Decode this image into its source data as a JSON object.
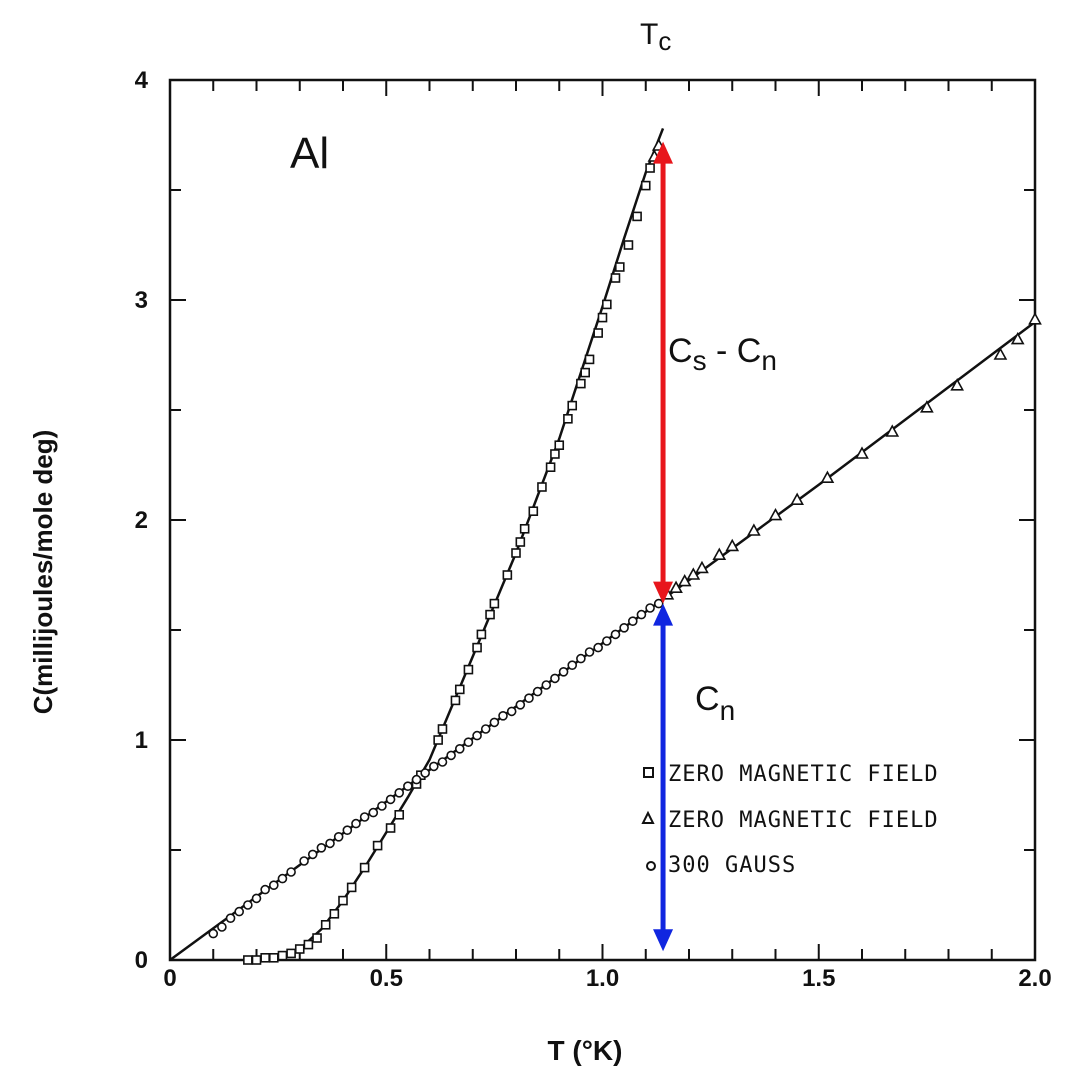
{
  "chart_data": {
    "type": "scatter",
    "xlabel": "T (°K)",
    "ylabel": "C(millijoules/mole deg)",
    "xlim": [
      0,
      2.0
    ],
    "ylim": [
      0,
      4
    ],
    "x_ticks": [
      {
        "value": 0,
        "label": "0"
      },
      {
        "value": 0.5,
        "label": "0.5"
      },
      {
        "value": 1.0,
        "label": "1.0"
      },
      {
        "value": 1.5,
        "label": "1.5"
      },
      {
        "value": 2.0,
        "label": "2.0"
      }
    ],
    "y_ticks": [
      {
        "value": 0,
        "label": "0"
      },
      {
        "value": 1,
        "label": "1"
      },
      {
        "value": 2,
        "label": "2"
      },
      {
        "value": 3,
        "label": "3"
      },
      {
        "value": 4,
        "label": "4"
      }
    ],
    "x_minor_step": 0.1,
    "y_minor_step": 0.5,
    "grid": false,
    "annotations": {
      "element": "Al",
      "tc": {
        "text": "T",
        "sub": "c",
        "x": 1.14
      },
      "diff": {
        "t1": "C",
        "s1": "s",
        "mid": " - ",
        "t2": "C",
        "s2": "n"
      },
      "normal": {
        "t": "C",
        "s": "n"
      }
    },
    "arrows": [
      {
        "name": "cs-minus-cn",
        "x": 1.14,
        "y_from": 3.72,
        "y_to": 1.62,
        "color": "#e8161c"
      },
      {
        "name": "cn",
        "x": 1.14,
        "y_from": 1.62,
        "y_to": 0.04,
        "color": "#1026e0"
      }
    ],
    "curves": [
      {
        "name": "superconducting",
        "points": [
          [
            0.18,
            0
          ],
          [
            0.25,
            0.01
          ],
          [
            0.3,
            0.05
          ],
          [
            0.35,
            0.14
          ],
          [
            0.4,
            0.27
          ],
          [
            0.45,
            0.42
          ],
          [
            0.5,
            0.58
          ],
          [
            0.55,
            0.74
          ],
          [
            0.6,
            0.91
          ],
          [
            0.7,
            1.38
          ],
          [
            0.8,
            1.85
          ],
          [
            0.9,
            2.37
          ],
          [
            1.0,
            2.97
          ],
          [
            1.05,
            3.28
          ],
          [
            1.1,
            3.58
          ],
          [
            1.14,
            3.78
          ]
        ]
      },
      {
        "name": "normal",
        "points": [
          [
            0,
            0
          ],
          [
            0.5,
            0.72
          ],
          [
            1.0,
            1.44
          ],
          [
            1.14,
            1.64
          ],
          [
            1.5,
            2.16
          ],
          [
            2.0,
            2.9
          ]
        ]
      }
    ],
    "series": [
      {
        "marker": "square",
        "values": [
          [
            0.18,
            0
          ],
          [
            0.2,
            0
          ],
          [
            0.22,
            0.01
          ],
          [
            0.24,
            0.01
          ],
          [
            0.26,
            0.02
          ],
          [
            0.28,
            0.03
          ],
          [
            0.3,
            0.05
          ],
          [
            0.32,
            0.07
          ],
          [
            0.34,
            0.1
          ],
          [
            0.36,
            0.16
          ],
          [
            0.38,
            0.21
          ],
          [
            0.4,
            0.27
          ],
          [
            0.42,
            0.33
          ],
          [
            0.45,
            0.42
          ],
          [
            0.48,
            0.52
          ],
          [
            0.51,
            0.6
          ],
          [
            0.53,
            0.66
          ],
          [
            0.57,
            0.8
          ],
          [
            0.58,
            0.84
          ],
          [
            0.62,
            1.0
          ],
          [
            0.63,
            1.05
          ],
          [
            0.66,
            1.18
          ],
          [
            0.67,
            1.23
          ],
          [
            0.69,
            1.32
          ],
          [
            0.71,
            1.42
          ],
          [
            0.72,
            1.48
          ],
          [
            0.74,
            1.57
          ],
          [
            0.75,
            1.62
          ],
          [
            0.78,
            1.75
          ],
          [
            0.8,
            1.85
          ],
          [
            0.81,
            1.9
          ],
          [
            0.82,
            1.96
          ],
          [
            0.84,
            2.04
          ],
          [
            0.86,
            2.15
          ],
          [
            0.88,
            2.24
          ],
          [
            0.89,
            2.3
          ],
          [
            0.9,
            2.34
          ],
          [
            0.92,
            2.46
          ],
          [
            0.93,
            2.52
          ],
          [
            0.95,
            2.62
          ],
          [
            0.96,
            2.67
          ],
          [
            0.97,
            2.73
          ],
          [
            0.99,
            2.85
          ],
          [
            1.0,
            2.92
          ],
          [
            1.01,
            2.98
          ],
          [
            1.03,
            3.1
          ],
          [
            1.04,
            3.15
          ],
          [
            1.06,
            3.25
          ],
          [
            1.08,
            3.38
          ],
          [
            1.1,
            3.52
          ],
          [
            1.11,
            3.6
          ]
        ]
      },
      {
        "marker": "triangle",
        "values": [
          [
            1.12,
            3.65
          ],
          [
            1.13,
            3.7
          ],
          [
            1.15,
            1.66
          ],
          [
            1.17,
            1.69
          ],
          [
            1.19,
            1.72
          ],
          [
            1.21,
            1.75
          ],
          [
            1.23,
            1.78
          ],
          [
            1.27,
            1.84
          ],
          [
            1.3,
            1.88
          ],
          [
            1.35,
            1.95
          ],
          [
            1.4,
            2.02
          ],
          [
            1.45,
            2.09
          ],
          [
            1.52,
            2.19
          ],
          [
            1.6,
            2.3
          ],
          [
            1.67,
            2.4
          ],
          [
            1.75,
            2.51
          ],
          [
            1.82,
            2.61
          ],
          [
            1.92,
            2.75
          ],
          [
            1.96,
            2.82
          ],
          [
            2.0,
            2.91
          ]
        ]
      },
      {
        "marker": "circle",
        "values": [
          [
            0.1,
            0.12
          ],
          [
            0.12,
            0.15
          ],
          [
            0.14,
            0.19
          ],
          [
            0.16,
            0.22
          ],
          [
            0.18,
            0.25
          ],
          [
            0.2,
            0.28
          ],
          [
            0.22,
            0.32
          ],
          [
            0.24,
            0.34
          ],
          [
            0.26,
            0.37
          ],
          [
            0.28,
            0.4
          ],
          [
            0.31,
            0.45
          ],
          [
            0.33,
            0.48
          ],
          [
            0.35,
            0.51
          ],
          [
            0.37,
            0.53
          ],
          [
            0.39,
            0.56
          ],
          [
            0.41,
            0.59
          ],
          [
            0.43,
            0.62
          ],
          [
            0.45,
            0.65
          ],
          [
            0.47,
            0.67
          ],
          [
            0.49,
            0.7
          ],
          [
            0.51,
            0.73
          ],
          [
            0.53,
            0.76
          ],
          [
            0.55,
            0.79
          ],
          [
            0.57,
            0.82
          ],
          [
            0.59,
            0.85
          ],
          [
            0.61,
            0.88
          ],
          [
            0.63,
            0.9
          ],
          [
            0.65,
            0.93
          ],
          [
            0.67,
            0.96
          ],
          [
            0.69,
            0.99
          ],
          [
            0.71,
            1.02
          ],
          [
            0.73,
            1.05
          ],
          [
            0.75,
            1.08
          ],
          [
            0.77,
            1.11
          ],
          [
            0.79,
            1.13
          ],
          [
            0.81,
            1.16
          ],
          [
            0.83,
            1.19
          ],
          [
            0.85,
            1.22
          ],
          [
            0.87,
            1.25
          ],
          [
            0.89,
            1.28
          ],
          [
            0.91,
            1.31
          ],
          [
            0.93,
            1.34
          ],
          [
            0.95,
            1.37
          ],
          [
            0.97,
            1.4
          ],
          [
            0.99,
            1.42
          ],
          [
            1.01,
            1.45
          ],
          [
            1.03,
            1.48
          ],
          [
            1.05,
            1.51
          ],
          [
            1.07,
            1.54
          ],
          [
            1.09,
            1.57
          ],
          [
            1.11,
            1.6
          ],
          [
            1.13,
            1.62
          ]
        ]
      }
    ],
    "legend": {
      "placement": "bottom-right",
      "items": [
        {
          "marker": "square",
          "label": "ZERO MAGNETIC FIELD"
        },
        {
          "marker": "triangle",
          "label": "ZERO MAGNETIC FIELD"
        },
        {
          "marker": "circle",
          "label": "300 GAUSS"
        }
      ]
    }
  }
}
